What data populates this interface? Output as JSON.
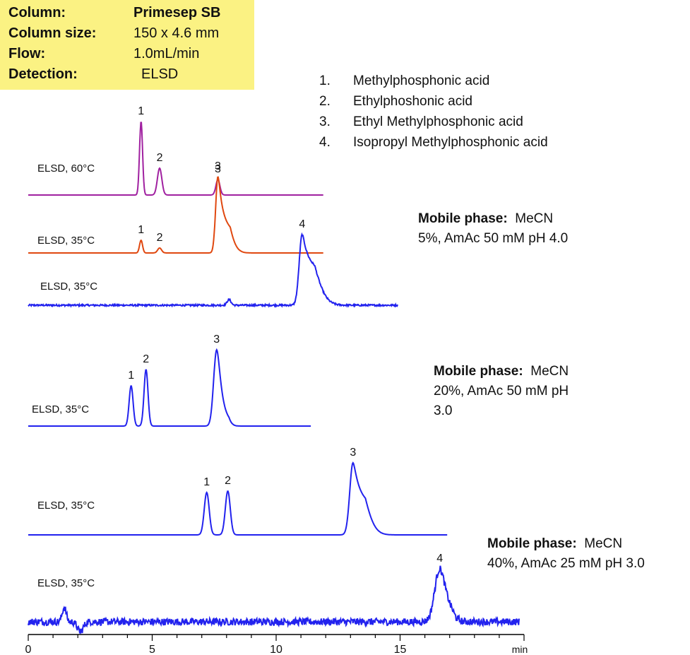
{
  "info": {
    "rows": [
      {
        "label": "Column:",
        "value": "Primesep SB",
        "value_bold": true
      },
      {
        "label": "Column size:",
        "value": "150 x 4.6 mm",
        "value_bold": false
      },
      {
        "label": "Flow:",
        "value": "1.0mL/min",
        "value_bold": false
      },
      {
        "label": "Detection:",
        "value": "ELSD",
        "value_bold": false
      }
    ],
    "background": "#fbf283"
  },
  "legend": [
    {
      "num": "1.",
      "name": "Methylphosphonic acid"
    },
    {
      "num": "2.",
      "name": "Ethylphoshonic acid"
    },
    {
      "num": "3.",
      "name": "Ethyl Methylphosphonic  acid"
    },
    {
      "num": "4.",
      "name": "Isopropyl Methylphosphonic acid"
    }
  ],
  "mobile_phases": [
    {
      "label": "Mobile phase:",
      "lines": [
        "MeCN",
        "5%, AmAc  50 mM pH 4.0"
      ]
    },
    {
      "label": "Mobile phase:",
      "lines": [
        "MeCN",
        "20%, AmAc  50 mM pH",
        "3.0"
      ]
    },
    {
      "label": "Mobile phase:",
      "lines": [
        "MeCN",
        "40%, AmAc  25 mM pH 3.0"
      ]
    }
  ],
  "chart_data": {
    "type": "line",
    "x_axis": {
      "ticks": [
        0,
        5,
        10,
        15
      ],
      "unit": "min",
      "range": [
        0,
        20
      ]
    },
    "colors": {
      "purple": "#a020a0",
      "red": "#e04810",
      "blue": "#2222ee"
    },
    "traces": [
      {
        "label": "ELSD, 60°C",
        "color": "purple",
        "x_range": [
          0,
          11.9
        ],
        "noise": 0,
        "peaks": [
          {
            "id": "1",
            "t": 4.55,
            "h": 104,
            "w": 0.06
          },
          {
            "id": "2",
            "t": 5.3,
            "h": 38,
            "w": 0.09
          },
          {
            "id": "3",
            "t": 7.65,
            "h": 22,
            "w": 0.08
          }
        ]
      },
      {
        "label": "ELSD, 35°C",
        "color": "red",
        "x_range": [
          0,
          11.9
        ],
        "noise": 0,
        "peaks": [
          {
            "id": "1",
            "t": 4.55,
            "h": 18,
            "w": 0.06
          },
          {
            "id": "2",
            "t": 5.3,
            "h": 7,
            "w": 0.08
          },
          {
            "id": "3",
            "t": 7.65,
            "h": 108,
            "w": 0.09,
            "tail": 0.25
          }
        ]
      },
      {
        "label": "ELSD, 35°C",
        "color": "blue",
        "x_range": [
          0,
          14.9
        ],
        "noise": 1.2,
        "peaks": [
          {
            "id": "",
            "t": 8.1,
            "h": 8,
            "w": 0.08
          },
          {
            "id": "4",
            "t": 11.05,
            "h": 100,
            "w": 0.12,
            "tail": 0.35
          }
        ]
      },
      {
        "label": "ELSD, 35°C",
        "color": "blue",
        "x_range": [
          0,
          11.4
        ],
        "noise": 0,
        "peaks": [
          {
            "id": "1",
            "t": 4.15,
            "h": 57,
            "w": 0.08
          },
          {
            "id": "2",
            "t": 4.75,
            "h": 80,
            "w": 0.08
          },
          {
            "id": "3",
            "t": 7.6,
            "h": 108,
            "w": 0.12,
            "tail": 0.12
          }
        ]
      },
      {
        "label": "ELSD, 35°C",
        "color": "blue",
        "x_range": [
          0,
          16.9
        ],
        "noise": 0,
        "peaks": [
          {
            "id": "1",
            "t": 7.2,
            "h": 60,
            "w": 0.1
          },
          {
            "id": "2",
            "t": 8.05,
            "h": 62,
            "w": 0.1
          },
          {
            "id": "3",
            "t": 13.1,
            "h": 102,
            "w": 0.13,
            "tail": 0.3
          }
        ]
      },
      {
        "label": "ELSD, 35°C",
        "color": "blue",
        "x_range": [
          0,
          19.8
        ],
        "noise": 5,
        "peaks": [
          {
            "id": "",
            "t": 1.45,
            "h": 20,
            "w": 0.08
          },
          {
            "id": "",
            "t": 2.1,
            "h": -14,
            "w": 0.12
          },
          {
            "id": "4",
            "t": 16.6,
            "h": 75,
            "w": 0.2,
            "tail": 0.1
          }
        ]
      }
    ]
  }
}
